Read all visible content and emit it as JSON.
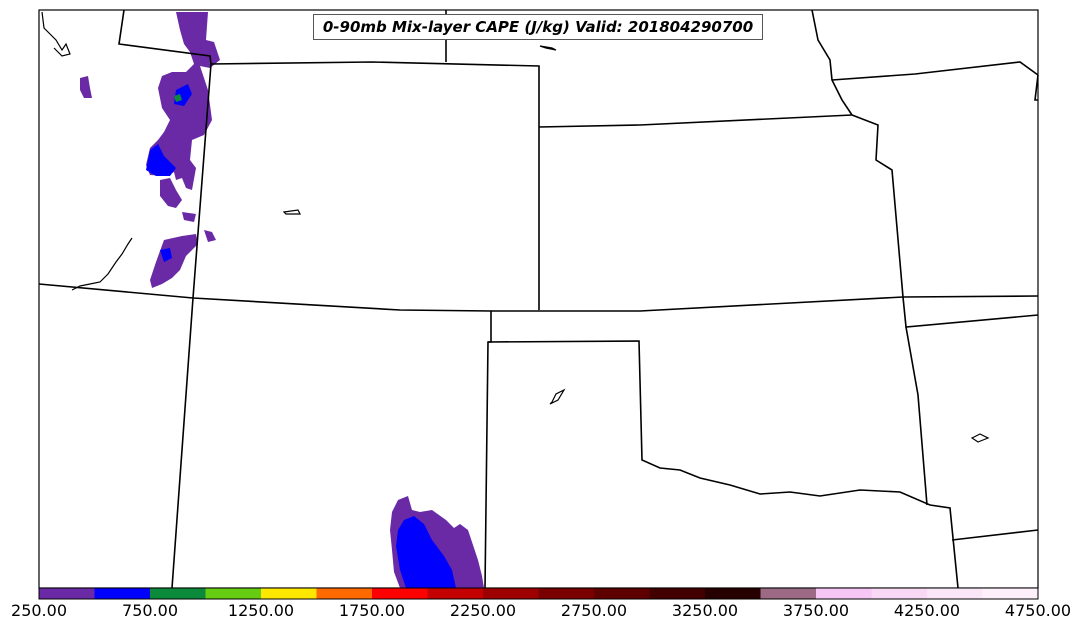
{
  "title": "0-90mb Mix-layer CAPE (J/kg) Valid: 201804290700",
  "colorbar": {
    "colors": [
      "#6a2aa6",
      "#0000ff",
      "#0a8a3a",
      "#66cc11",
      "#ffe800",
      "#ff6a00",
      "#ff0000",
      "#c40000",
      "#9e0000",
      "#7a0000",
      "#5e0000",
      "#420000",
      "#260000",
      "#9c6a85",
      "#f6c6f4",
      "#f8d8f4",
      "#fbe6f8",
      "#fdf0fb"
    ],
    "tick_labels": [
      "250.00",
      "750.00",
      "1250.00",
      "1750.00",
      "2250.00",
      "2750.00",
      "3250.00",
      "3750.00",
      "4250.00",
      "4750.00"
    ]
  }
}
